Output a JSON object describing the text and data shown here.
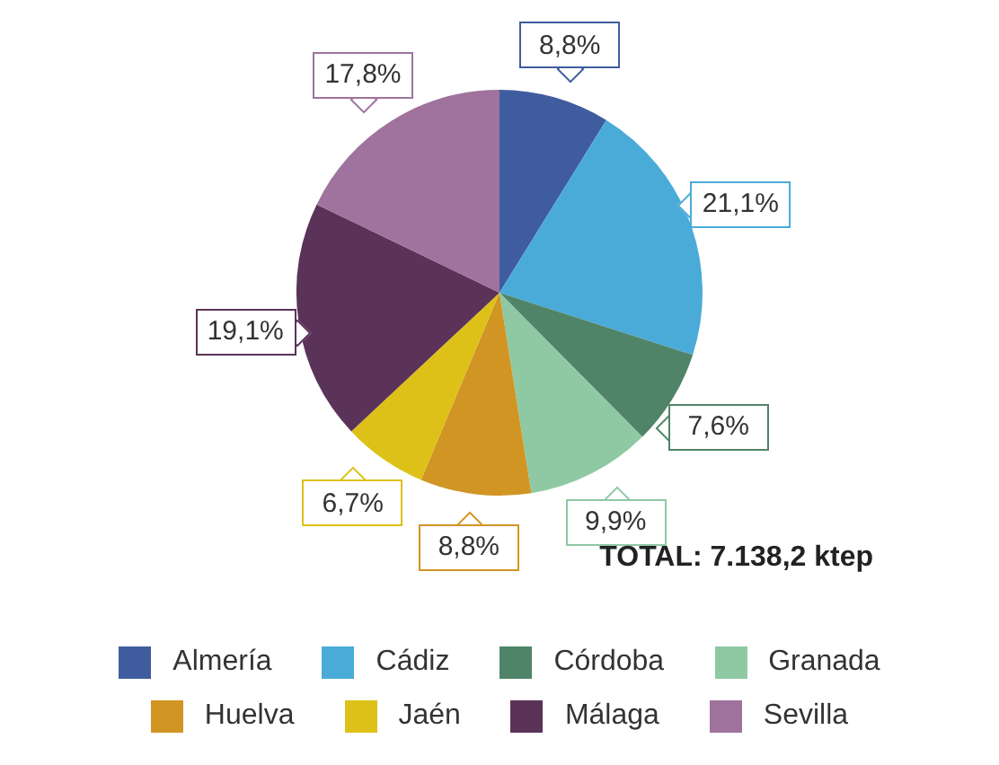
{
  "chart_data": {
    "type": "pie",
    "categories": [
      "Almería",
      "Cádiz",
      "Córdoba",
      "Granada",
      "Huelva",
      "Jaén",
      "Málaga",
      "Sevilla"
    ],
    "values": [
      8.8,
      21.1,
      7.6,
      9.9,
      8.8,
      6.7,
      19.1,
      17.8
    ],
    "value_labels": [
      "8,8%",
      "21,1%",
      "7,6%",
      "9,9%",
      "8,8%",
      "6,7%",
      "19,1%",
      "17,8%"
    ],
    "colors": [
      "#3f5d9e",
      "#4aabd8",
      "#4f8468",
      "#8ec9a4",
      "#d19524",
      "#ddc118",
      "#5b3358",
      "#9f739d"
    ],
    "annotations": [
      "TOTAL: 7.138,2 ktep"
    ],
    "legend": "bottom"
  }
}
